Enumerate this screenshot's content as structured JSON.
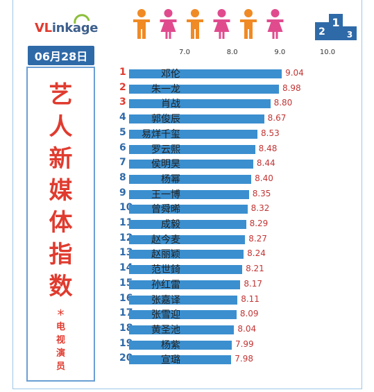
{
  "logo": {
    "vl": "VL",
    "rest": "inkage"
  },
  "date": "06月28日",
  "title_chars": [
    "艺",
    "人",
    "新",
    "媒",
    "体",
    "指",
    "数"
  ],
  "star": "*",
  "subtitle_chars": [
    "电",
    "视",
    "演",
    "员"
  ],
  "podium": {
    "first": "1",
    "second": "2",
    "third": "3"
  },
  "colors": {
    "bar": "#3b8fcf",
    "value": "#c23434",
    "rank_top3": "#e03b2f",
    "rank_rest": "#2f6aa8",
    "accent": "#2f6aa8"
  },
  "icons": [
    "male-person-icon",
    "female-person-icon",
    "male-person-icon",
    "female-person-icon",
    "male-person-icon",
    "female-person-icon"
  ],
  "chart_data": {
    "type": "bar",
    "orientation": "horizontal",
    "x_ticks": [
      "7.0",
      "8.0",
      "9.0",
      "10.0"
    ],
    "xlim": [
      7.0,
      10.0
    ],
    "ranks": [
      "1",
      "2",
      "3",
      "4",
      "5",
      "6",
      "7",
      "8",
      "9",
      "10",
      "11",
      "12",
      "13",
      "14",
      "15",
      "16",
      "17",
      "18",
      "19",
      "20"
    ],
    "categories": [
      "邓伦",
      "朱一龙",
      "肖战",
      "郭俊辰",
      "易烊千玺",
      "罗云熙",
      "侯明昊",
      "杨幂",
      "王一博",
      "曾舜晞",
      "成毅",
      "赵今麦",
      "赵丽颖",
      "范世錡",
      "孙红雷",
      "张嘉译",
      "张雪迎",
      "黄圣池",
      "杨紫",
      "宣璐"
    ],
    "values": [
      9.04,
      8.98,
      8.8,
      8.67,
      8.53,
      8.48,
      8.44,
      8.4,
      8.35,
      8.32,
      8.29,
      8.27,
      8.24,
      8.21,
      8.17,
      8.11,
      8.09,
      8.04,
      7.99,
      7.98
    ],
    "value_labels": [
      "9.04",
      "8.98",
      "8.80",
      "8.67",
      "8.53",
      "8.48",
      "8.44",
      "8.40",
      "8.35",
      "8.32",
      "8.29",
      "8.27",
      "8.24",
      "8.21",
      "8.17",
      "8.11",
      "8.09",
      "8.04",
      "7.99",
      "7.98"
    ]
  }
}
